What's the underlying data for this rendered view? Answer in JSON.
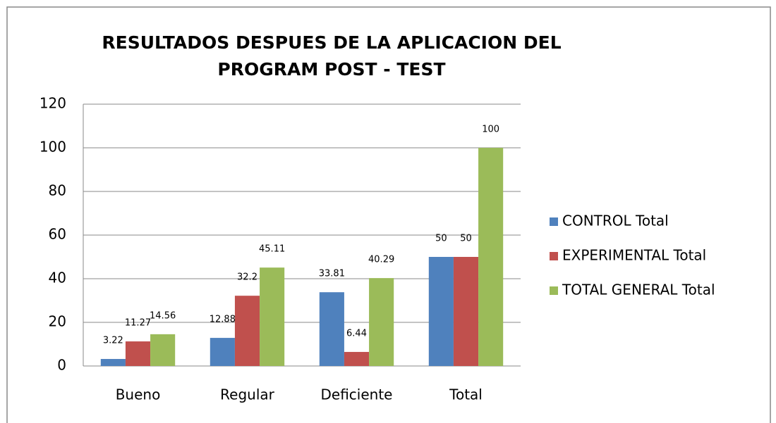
{
  "chart_data": {
    "type": "bar",
    "title": [
      "RESULTADOS DESPUES DE LA APLICACION DEL",
      "PROGRAM POST - TEST"
    ],
    "categories": [
      "Bueno",
      "Regular",
      "Deficiente",
      "Total"
    ],
    "series": [
      {
        "name": "CONTROL Total",
        "color": "#4f81bd",
        "values": [
          3.22,
          12.88,
          33.81,
          50
        ]
      },
      {
        "name": "EXPERIMENTAL Total",
        "color": "#c0504d",
        "values": [
          11.27,
          32.2,
          6.44,
          50
        ]
      },
      {
        "name": "TOTAL GENERAL Total",
        "color": "#9bbb59",
        "values": [
          14.56,
          45.11,
          40.29,
          100
        ]
      }
    ],
    "ylim": [
      0,
      120
    ],
    "yticks": [
      0,
      20,
      40,
      60,
      80,
      100,
      120
    ],
    "grid": true,
    "legend": "right"
  }
}
